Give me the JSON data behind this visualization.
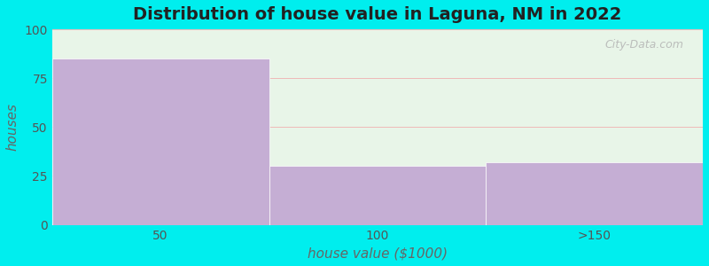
{
  "categories": [
    "50",
    "100",
    ">150"
  ],
  "values": [
    85,
    30,
    32
  ],
  "bar_color": "#c5aed4",
  "background_color": "#00eeee",
  "plot_bg_color_top": "#e8f5e8",
  "plot_bg_color_bottom": "#f5faf5",
  "title": "Distribution of house value in Laguna, NM in 2022",
  "xlabel": "house value ($1000)",
  "ylabel": "houses",
  "ylim": [
    0,
    100
  ],
  "yticks": [
    0,
    25,
    50,
    75,
    100
  ],
  "grid_color": "#f0b0b0",
  "title_fontsize": 14,
  "label_fontsize": 11,
  "tick_fontsize": 10,
  "watermark": "City-Data.com",
  "n_bars": 3
}
